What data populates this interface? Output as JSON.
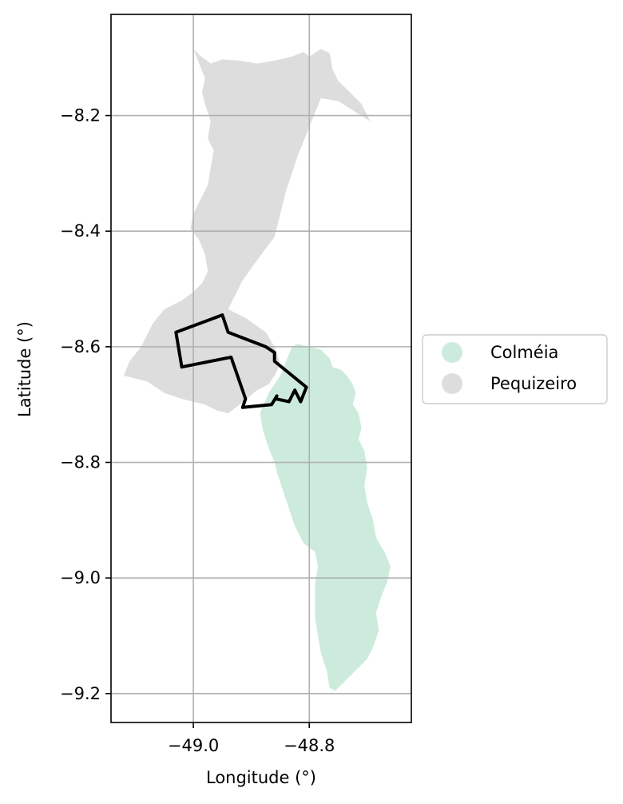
{
  "chart_data": {
    "type": "map",
    "xlabel": "Longitude (°)",
    "ylabel": "Latitude (°)",
    "xlim": [
      -49.142,
      -48.624
    ],
    "ylim": [
      -9.25,
      -8.025
    ],
    "grid": true,
    "x_ticks": [
      {
        "value": -49.0,
        "label": "−49.0"
      },
      {
        "value": -48.8,
        "label": "−48.8"
      }
    ],
    "y_ticks": [
      {
        "value": -8.2,
        "label": "−8.2"
      },
      {
        "value": -8.4,
        "label": "−8.4"
      },
      {
        "value": -8.6,
        "label": "−8.6"
      },
      {
        "value": -8.8,
        "label": "−8.8"
      },
      {
        "value": -9.0,
        "label": "−9.0"
      },
      {
        "value": -9.2,
        "label": "−9.2"
      }
    ],
    "legend_position": "right",
    "legend": [
      {
        "label": "Colméia",
        "color": "#cdebdc"
      },
      {
        "label": "Pequizeiro",
        "color": "#dddddd"
      }
    ],
    "regions": [
      {
        "name": "Pequizeiro",
        "color": "#dddddd",
        "coords": [
          [
            -49.0,
            -8.085
          ],
          [
            -48.99,
            -8.095
          ],
          [
            -48.97,
            -8.11
          ],
          [
            -48.95,
            -8.103
          ],
          [
            -48.92,
            -8.105
          ],
          [
            -48.89,
            -8.11
          ],
          [
            -48.86,
            -8.105
          ],
          [
            -48.83,
            -8.098
          ],
          [
            -48.81,
            -8.09
          ],
          [
            -48.8,
            -8.098
          ],
          [
            -48.78,
            -8.085
          ],
          [
            -48.765,
            -8.092
          ],
          [
            -48.76,
            -8.12
          ],
          [
            -48.75,
            -8.14
          ],
          [
            -48.73,
            -8.16
          ],
          [
            -48.71,
            -8.18
          ],
          [
            -48.695,
            -8.21
          ],
          [
            -48.75,
            -8.175
          ],
          [
            -48.78,
            -8.17
          ],
          [
            -48.8,
            -8.22
          ],
          [
            -48.82,
            -8.27
          ],
          [
            -48.84,
            -8.33
          ],
          [
            -48.86,
            -8.41
          ],
          [
            -48.89,
            -8.45
          ],
          [
            -48.915,
            -8.485
          ],
          [
            -48.93,
            -8.515
          ],
          [
            -48.94,
            -8.535
          ],
          [
            -48.91,
            -8.55
          ],
          [
            -48.875,
            -8.575
          ],
          [
            -48.86,
            -8.6
          ],
          [
            -48.85,
            -8.63
          ],
          [
            -48.86,
            -8.65
          ],
          [
            -48.87,
            -8.665
          ],
          [
            -48.89,
            -8.675
          ],
          [
            -48.92,
            -8.7
          ],
          [
            -48.94,
            -8.715
          ],
          [
            -48.96,
            -8.71
          ],
          [
            -48.98,
            -8.7
          ],
          [
            -49.0,
            -8.695
          ],
          [
            -49.02,
            -8.69
          ],
          [
            -49.05,
            -8.68
          ],
          [
            -49.08,
            -8.66
          ],
          [
            -49.12,
            -8.65
          ],
          [
            -49.11,
            -8.625
          ],
          [
            -49.09,
            -8.6
          ],
          [
            -49.07,
            -8.56
          ],
          [
            -49.05,
            -8.535
          ],
          [
            -49.02,
            -8.52
          ],
          [
            -49.0,
            -8.505
          ],
          [
            -48.985,
            -8.49
          ],
          [
            -48.975,
            -8.47
          ],
          [
            -48.98,
            -8.44
          ],
          [
            -48.99,
            -8.415
          ],
          [
            -49.005,
            -8.395
          ],
          [
            -49.0,
            -8.37
          ],
          [
            -48.99,
            -8.35
          ],
          [
            -48.975,
            -8.32
          ],
          [
            -48.97,
            -8.29
          ],
          [
            -48.965,
            -8.26
          ],
          [
            -48.975,
            -8.24
          ],
          [
            -48.97,
            -8.21
          ],
          [
            -48.98,
            -8.18
          ],
          [
            -48.985,
            -8.16
          ],
          [
            -48.98,
            -8.135
          ],
          [
            -48.99,
            -8.11
          ]
        ]
      },
      {
        "name": "Colméia",
        "color": "#cdebdc",
        "coords": [
          [
            -48.885,
            -8.715
          ],
          [
            -48.87,
            -8.68
          ],
          [
            -48.85,
            -8.65
          ],
          [
            -48.84,
            -8.625
          ],
          [
            -48.83,
            -8.6
          ],
          [
            -48.82,
            -8.595
          ],
          [
            -48.8,
            -8.6
          ],
          [
            -48.78,
            -8.605
          ],
          [
            -48.765,
            -8.62
          ],
          [
            -48.76,
            -8.635
          ],
          [
            -48.745,
            -8.64
          ],
          [
            -48.735,
            -8.65
          ],
          [
            -48.725,
            -8.665
          ],
          [
            -48.72,
            -8.68
          ],
          [
            -48.725,
            -8.7
          ],
          [
            -48.715,
            -8.715
          ],
          [
            -48.71,
            -8.74
          ],
          [
            -48.715,
            -8.76
          ],
          [
            -48.705,
            -8.78
          ],
          [
            -48.7,
            -8.81
          ],
          [
            -48.705,
            -8.84
          ],
          [
            -48.7,
            -8.87
          ],
          [
            -48.69,
            -8.9
          ],
          [
            -48.685,
            -8.93
          ],
          [
            -48.67,
            -8.955
          ],
          [
            -48.66,
            -8.98
          ],
          [
            -48.665,
            -9.005
          ],
          [
            -48.675,
            -9.03
          ],
          [
            -48.685,
            -9.06
          ],
          [
            -48.68,
            -9.09
          ],
          [
            -48.69,
            -9.12
          ],
          [
            -48.7,
            -9.14
          ],
          [
            -48.72,
            -9.16
          ],
          [
            -48.74,
            -9.18
          ],
          [
            -48.755,
            -9.195
          ],
          [
            -48.765,
            -9.19
          ],
          [
            -48.77,
            -9.16
          ],
          [
            -48.78,
            -9.13
          ],
          [
            -48.785,
            -9.1
          ],
          [
            -48.79,
            -9.07
          ],
          [
            -48.79,
            -9.04
          ],
          [
            -48.79,
            -9.01
          ],
          [
            -48.785,
            -8.98
          ],
          [
            -48.79,
            -8.955
          ],
          [
            -48.81,
            -8.94
          ],
          [
            -48.825,
            -8.91
          ],
          [
            -48.835,
            -8.88
          ],
          [
            -48.845,
            -8.85
          ],
          [
            -48.855,
            -8.82
          ],
          [
            -48.86,
            -8.8
          ],
          [
            -48.87,
            -8.775
          ],
          [
            -48.88,
            -8.745
          ]
        ]
      }
    ],
    "outline": {
      "color": "#000000",
      "coords": [
        [
          -49.03,
          -8.575
        ],
        [
          -48.95,
          -8.545
        ],
        [
          -48.94,
          -8.575
        ],
        [
          -48.875,
          -8.6
        ],
        [
          -48.86,
          -8.61
        ],
        [
          -48.86,
          -8.625
        ],
        [
          -48.805,
          -8.67
        ],
        [
          -48.815,
          -8.695
        ],
        [
          -48.825,
          -8.675
        ],
        [
          -48.835,
          -8.695
        ],
        [
          -48.858,
          -8.69
        ],
        [
          -48.856,
          -8.685
        ],
        [
          -48.865,
          -8.7
        ],
        [
          -48.915,
          -8.705
        ],
        [
          -48.91,
          -8.69
        ],
        [
          -48.935,
          -8.618
        ],
        [
          -49.02,
          -8.635
        ]
      ]
    }
  }
}
